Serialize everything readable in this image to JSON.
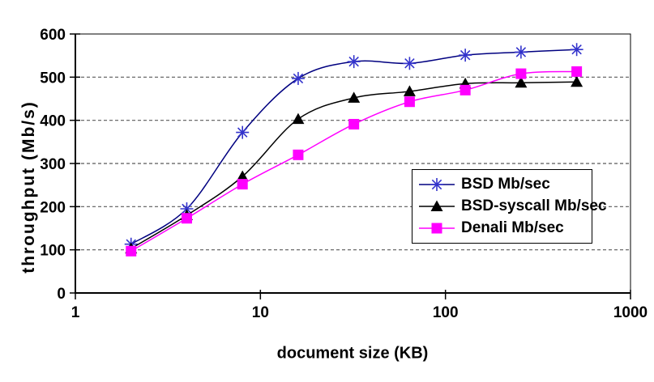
{
  "chart_data": {
    "type": "line",
    "title": "",
    "xlabel": "document size (KB)",
    "ylabel": "throughput (Mb/s)",
    "xscale": "log",
    "xlim": [
      1,
      1000
    ],
    "ylim": [
      0,
      600
    ],
    "xticks": [
      1,
      10,
      100,
      1000
    ],
    "yticks": [
      0,
      100,
      200,
      300,
      400,
      500,
      600
    ],
    "grid": "horizontal-dashed",
    "gridline_color": "#595959",
    "background": "#ffffff",
    "legend_position": "inside-right",
    "x": [
      2,
      4,
      8,
      16,
      32,
      64,
      128,
      256,
      512
    ],
    "series": [
      {
        "name": "BSD Mb/sec",
        "marker": "asterisk",
        "line_color": "#000080",
        "marker_color": "#3333cc",
        "values": [
          113,
          195,
          372,
          497,
          536,
          532,
          551,
          558,
          564
        ]
      },
      {
        "name": "BSD-syscall Mb/sec",
        "marker": "triangle",
        "line_color": "#000000",
        "marker_color": "#000000",
        "values": [
          103,
          180,
          270,
          403,
          452,
          467,
          485,
          487,
          489
        ]
      },
      {
        "name": "Denali Mb/sec",
        "marker": "square",
        "line_color": "#ff00ff",
        "marker_color": "#ff00ff",
        "values": [
          97,
          173,
          252,
          320,
          391,
          443,
          470,
          508,
          513
        ]
      }
    ]
  }
}
